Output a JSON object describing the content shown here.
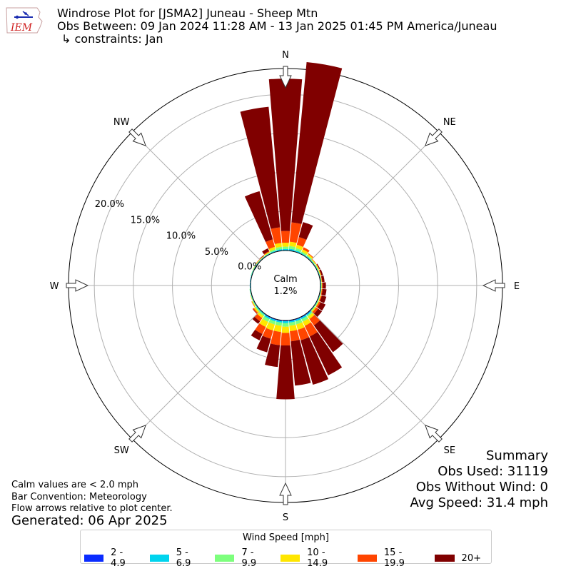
{
  "header": {
    "title_line1": "Windrose Plot for [JSMA2] Juneau - Sheep Mtn",
    "title_line2": "Obs Between: 09 Jan 2024 11:28 AM - 13 Jan 2025 01:45 PM America/Juneau",
    "title_line3": "↳ constraints: Jan",
    "logo_text": "IEM"
  },
  "notes": {
    "line1": "Calm values are < 2.0 mph",
    "line2": "Bar Convention: Meteorology",
    "line3": "Flow arrows relative to plot center.",
    "generated": "Generated: 06 Apr 2025"
  },
  "summary": {
    "heading": "Summary",
    "obs_used": "Obs Used: 31119",
    "obs_without_wind": "Obs Without Wind: 0",
    "avg_speed": "Avg Speed: 31.4 mph"
  },
  "chart_data": {
    "type": "windrose",
    "calm_label": "Calm",
    "calm_value": "1.2%",
    "radial_ticks": [
      "0.0%",
      "5.0%",
      "10.0%",
      "15.0%",
      "20.0%"
    ],
    "radial_tick_values": [
      0,
      5,
      10,
      15,
      20
    ],
    "rmax": 23.3,
    "directions": [
      "N",
      "NE",
      "E",
      "SE",
      "S",
      "SW",
      "W",
      "NW"
    ],
    "legend_title": "Wind Speed [mph]",
    "bins": [
      {
        "label": "2 - 4.9",
        "color": "#0a2cff"
      },
      {
        "label": "5 - 6.9",
        "color": "#00d4ee"
      },
      {
        "label": "7 - 9.9",
        "color": "#7dff7d"
      },
      {
        "label": "10 - 14.9",
        "color": "#ffe600"
      },
      {
        "label": "15 - 19.9",
        "color": "#ff4500"
      },
      {
        "label": "20+",
        "color": "#800000"
      }
    ],
    "sectors": [
      {
        "dir": 0,
        "values": [
          0.05,
          0.15,
          0.3,
          0.5,
          1.5,
          19.5
        ]
      },
      {
        "dir": 10,
        "values": [
          0.05,
          0.2,
          0.35,
          0.55,
          2.5,
          20.6
        ]
      },
      {
        "dir": 20,
        "values": [
          0.05,
          0.15,
          0.3,
          0.45,
          1.0,
          2.0
        ]
      },
      {
        "dir": 30,
        "values": [
          0.05,
          0.1,
          0.2,
          0.3,
          0.3,
          0.0
        ]
      },
      {
        "dir": 40,
        "values": [
          0.05,
          0.1,
          0.15,
          0.2,
          0.1,
          0.0
        ]
      },
      {
        "dir": 50,
        "values": [
          0.05,
          0.05,
          0.1,
          0.1,
          0.05,
          0.0
        ]
      },
      {
        "dir": 60,
        "values": [
          0.05,
          0.05,
          0.1,
          0.1,
          0.05,
          0.1
        ]
      },
      {
        "dir": 70,
        "values": [
          0.05,
          0.05,
          0.05,
          0.1,
          0.05,
          0.2
        ]
      },
      {
        "dir": 80,
        "values": [
          0.05,
          0.05,
          0.05,
          0.05,
          0.05,
          0.3
        ]
      },
      {
        "dir": 90,
        "values": [
          0.05,
          0.05,
          0.05,
          0.05,
          0.1,
          0.4
        ]
      },
      {
        "dir": 100,
        "values": [
          0.05,
          0.05,
          0.05,
          0.05,
          0.1,
          0.5
        ]
      },
      {
        "dir": 110,
        "values": [
          0.05,
          0.05,
          0.05,
          0.1,
          0.1,
          0.6
        ]
      },
      {
        "dir": 120,
        "values": [
          0.05,
          0.05,
          0.1,
          0.1,
          0.2,
          0.7
        ]
      },
      {
        "dir": 130,
        "values": [
          0.05,
          0.05,
          0.1,
          0.15,
          0.3,
          0.6
        ]
      },
      {
        "dir": 140,
        "values": [
          0.1,
          0.15,
          0.2,
          0.35,
          1.0,
          4.2
        ]
      },
      {
        "dir": 150,
        "values": [
          0.1,
          0.2,
          0.35,
          0.6,
          1.5,
          5.5
        ]
      },
      {
        "dir": 160,
        "values": [
          0.1,
          0.2,
          0.4,
          0.7,
          1.4,
          5.9
        ]
      },
      {
        "dir": 170,
        "values": [
          0.1,
          0.2,
          0.4,
          0.7,
          1.3,
          5.7
        ]
      },
      {
        "dir": 180,
        "values": [
          0.1,
          0.25,
          0.45,
          0.8,
          1.6,
          6.9
        ]
      },
      {
        "dir": 190,
        "values": [
          0.1,
          0.2,
          0.4,
          0.8,
          1.7,
          2.8
        ]
      },
      {
        "dir": 200,
        "values": [
          0.1,
          0.2,
          0.4,
          0.8,
          1.1,
          1.8
        ]
      },
      {
        "dir": 210,
        "values": [
          0.1,
          0.2,
          0.4,
          0.7,
          1.0,
          0.9
        ]
      },
      {
        "dir": 220,
        "values": [
          0.05,
          0.1,
          0.2,
          0.3,
          0.5,
          0.4
        ]
      },
      {
        "dir": 230,
        "values": [
          0.05,
          0.1,
          0.15,
          0.2,
          0.15,
          0.05
        ]
      },
      {
        "dir": 240,
        "values": [
          0.05,
          0.05,
          0.1,
          0.1,
          0.05,
          0.0
        ]
      },
      {
        "dir": 250,
        "values": [
          0.05,
          0.05,
          0.05,
          0.05,
          0.0,
          0.0
        ]
      },
      {
        "dir": 260,
        "values": [
          0.05,
          0.05,
          0.05,
          0.0,
          0.0,
          0.0
        ]
      },
      {
        "dir": 270,
        "values": [
          0.05,
          0.05,
          0.0,
          0.0,
          0.0,
          0.0
        ]
      },
      {
        "dir": 280,
        "values": [
          0.05,
          0.05,
          0.0,
          0.0,
          0.0,
          0.0
        ]
      },
      {
        "dir": 290,
        "values": [
          0.05,
          0.05,
          0.05,
          0.0,
          0.0,
          0.0
        ]
      },
      {
        "dir": 300,
        "values": [
          0.05,
          0.05,
          0.05,
          0.05,
          0.0,
          0.0
        ]
      },
      {
        "dir": 310,
        "values": [
          0.05,
          0.05,
          0.05,
          0.05,
          0.05,
          0.0
        ]
      },
      {
        "dir": 320,
        "values": [
          0.05,
          0.05,
          0.05,
          0.05,
          0.05,
          0.05
        ]
      },
      {
        "dir": 330,
        "values": [
          0.05,
          0.05,
          0.1,
          0.1,
          0.1,
          0.4
        ]
      },
      {
        "dir": 340,
        "values": [
          0.05,
          0.1,
          0.2,
          0.3,
          1.0,
          6.4
        ]
      },
      {
        "dir": 350,
        "values": [
          0.05,
          0.15,
          0.3,
          0.5,
          2.0,
          15.5
        ]
      }
    ]
  }
}
